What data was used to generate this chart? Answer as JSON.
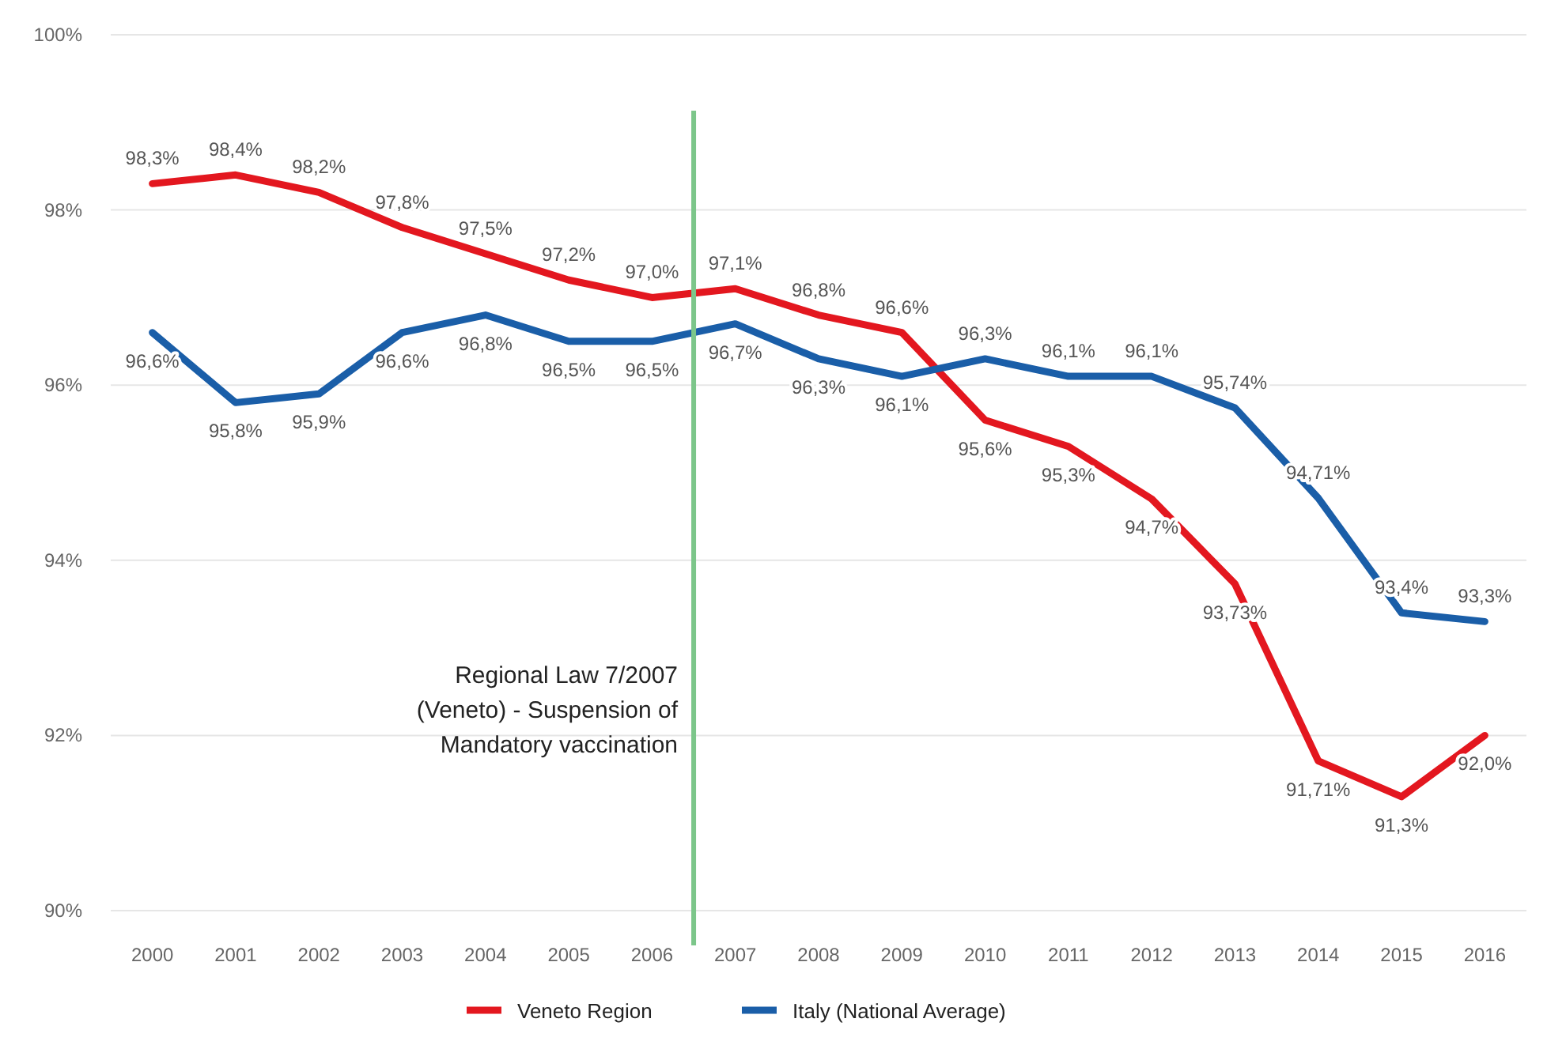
{
  "chart_data": {
    "type": "line",
    "x": [
      2000,
      2001,
      2002,
      2003,
      2004,
      2005,
      2006,
      2007,
      2008,
      2009,
      2010,
      2011,
      2012,
      2013,
      2014,
      2015,
      2016
    ],
    "xlim": [
      1999.5,
      2016.5
    ],
    "xticks": [
      2000,
      2001,
      2002,
      2003,
      2004,
      2005,
      2006,
      2007,
      2008,
      2009,
      2010,
      2011,
      2012,
      2013,
      2014,
      2015,
      2016
    ],
    "ylim": [
      90,
      100
    ],
    "yticks": [
      {
        "value": 90,
        "label": "90%"
      },
      {
        "value": 92,
        "label": "92%"
      },
      {
        "value": 94,
        "label": "94%"
      },
      {
        "value": 96,
        "label": "96%"
      },
      {
        "value": 98,
        "label": "98%"
      },
      {
        "value": 100,
        "label": "100%"
      }
    ],
    "grid": "y",
    "legend": "bottom",
    "marker": "none",
    "line_style": "solid",
    "series": [
      {
        "name": "Veneto Region",
        "color": "#e3171f",
        "values": [
          98.3,
          98.4,
          98.2,
          97.8,
          97.5,
          97.2,
          97.0,
          97.1,
          96.8,
          96.6,
          95.6,
          95.3,
          94.7,
          93.73,
          91.71,
          91.3,
          92.0
        ],
        "value_labels": [
          "98,3%",
          "98,4%",
          "98,2%",
          "97,8%",
          "97,5%",
          "97,2%",
          "97,0%",
          "97,1%",
          "96,8%",
          "96,6%",
          "95,6%",
          "95,3%",
          "94,7%",
          "93,73%",
          "91,71%",
          "91,3%",
          "92,0%"
        ]
      },
      {
        "name": "Italy (National Average)",
        "color": "#1a5ea8",
        "values": [
          96.6,
          95.8,
          95.9,
          96.6,
          96.8,
          96.5,
          96.5,
          96.7,
          96.3,
          96.1,
          96.3,
          96.1,
          96.1,
          95.74,
          94.71,
          93.4,
          93.3
        ],
        "value_labels": [
          "96,6%",
          "95,8%",
          "95,9%",
          "96,6%",
          "96,8%",
          "96,5%",
          "96,5%",
          "96,7%",
          "96,3%",
          "96,1%",
          "96,3%",
          "96,1%",
          "96,1%",
          "95,74%",
          "94,71%",
          "93,4%",
          "93,3%"
        ]
      }
    ],
    "ref_lines": [
      {
        "axis": "x",
        "value": 2006.5,
        "label": "Regional Law 7/2007\n(Veneto) - Suspension of\nMandatory vaccination",
        "color": "#7cc68a"
      }
    ]
  }
}
